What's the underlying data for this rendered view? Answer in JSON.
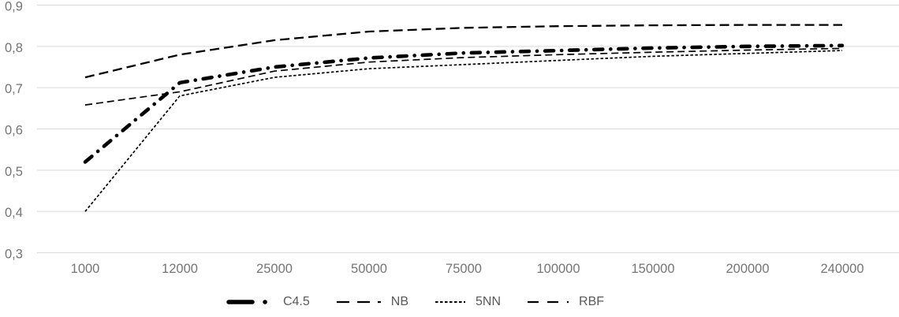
{
  "chart_data": {
    "type": "line",
    "title": "",
    "xlabel": "",
    "ylabel": "",
    "x_categories": [
      "1000",
      "12000",
      "25000",
      "50000",
      "75000",
      "100000",
      "150000",
      "200000",
      "240000"
    ],
    "y_axis": {
      "min": 0.3,
      "max": 0.9,
      "step": 0.1,
      "decimal_separator": ",",
      "tick_labels_top_to_bottom": [
        "0,9",
        "0,8",
        "0,7",
        "0,6",
        "0,5",
        "0,4",
        "0,3"
      ]
    },
    "grid": "horizontal-only",
    "legend_position": "bottom-center",
    "series": [
      {
        "name": "C4.5",
        "style": "thick-dash-dot",
        "color": "#000000",
        "values": [
          0.52,
          0.712,
          0.75,
          0.772,
          0.784,
          0.79,
          0.796,
          0.8,
          0.802
        ]
      },
      {
        "name": "NB",
        "style": "dash",
        "color": "#000000",
        "values": [
          0.658,
          0.69,
          0.74,
          0.762,
          0.773,
          0.78,
          0.786,
          0.791,
          0.795
        ]
      },
      {
        "name": "5NN",
        "style": "fine-dot",
        "color": "#000000",
        "values": [
          0.4,
          0.68,
          0.725,
          0.746,
          0.756,
          0.766,
          0.776,
          0.783,
          0.79
        ]
      },
      {
        "name": "RBF",
        "style": "long-dash",
        "color": "#000000",
        "values": [
          0.725,
          0.78,
          0.815,
          0.836,
          0.845,
          0.849,
          0.851,
          0.852,
          0.852
        ]
      }
    ],
    "colors": {
      "background": "#FFFFFF",
      "gridline": "#D9D9D9",
      "axis_label": "#757575",
      "legend_label": "#595959",
      "series_line": "#000000"
    }
  }
}
